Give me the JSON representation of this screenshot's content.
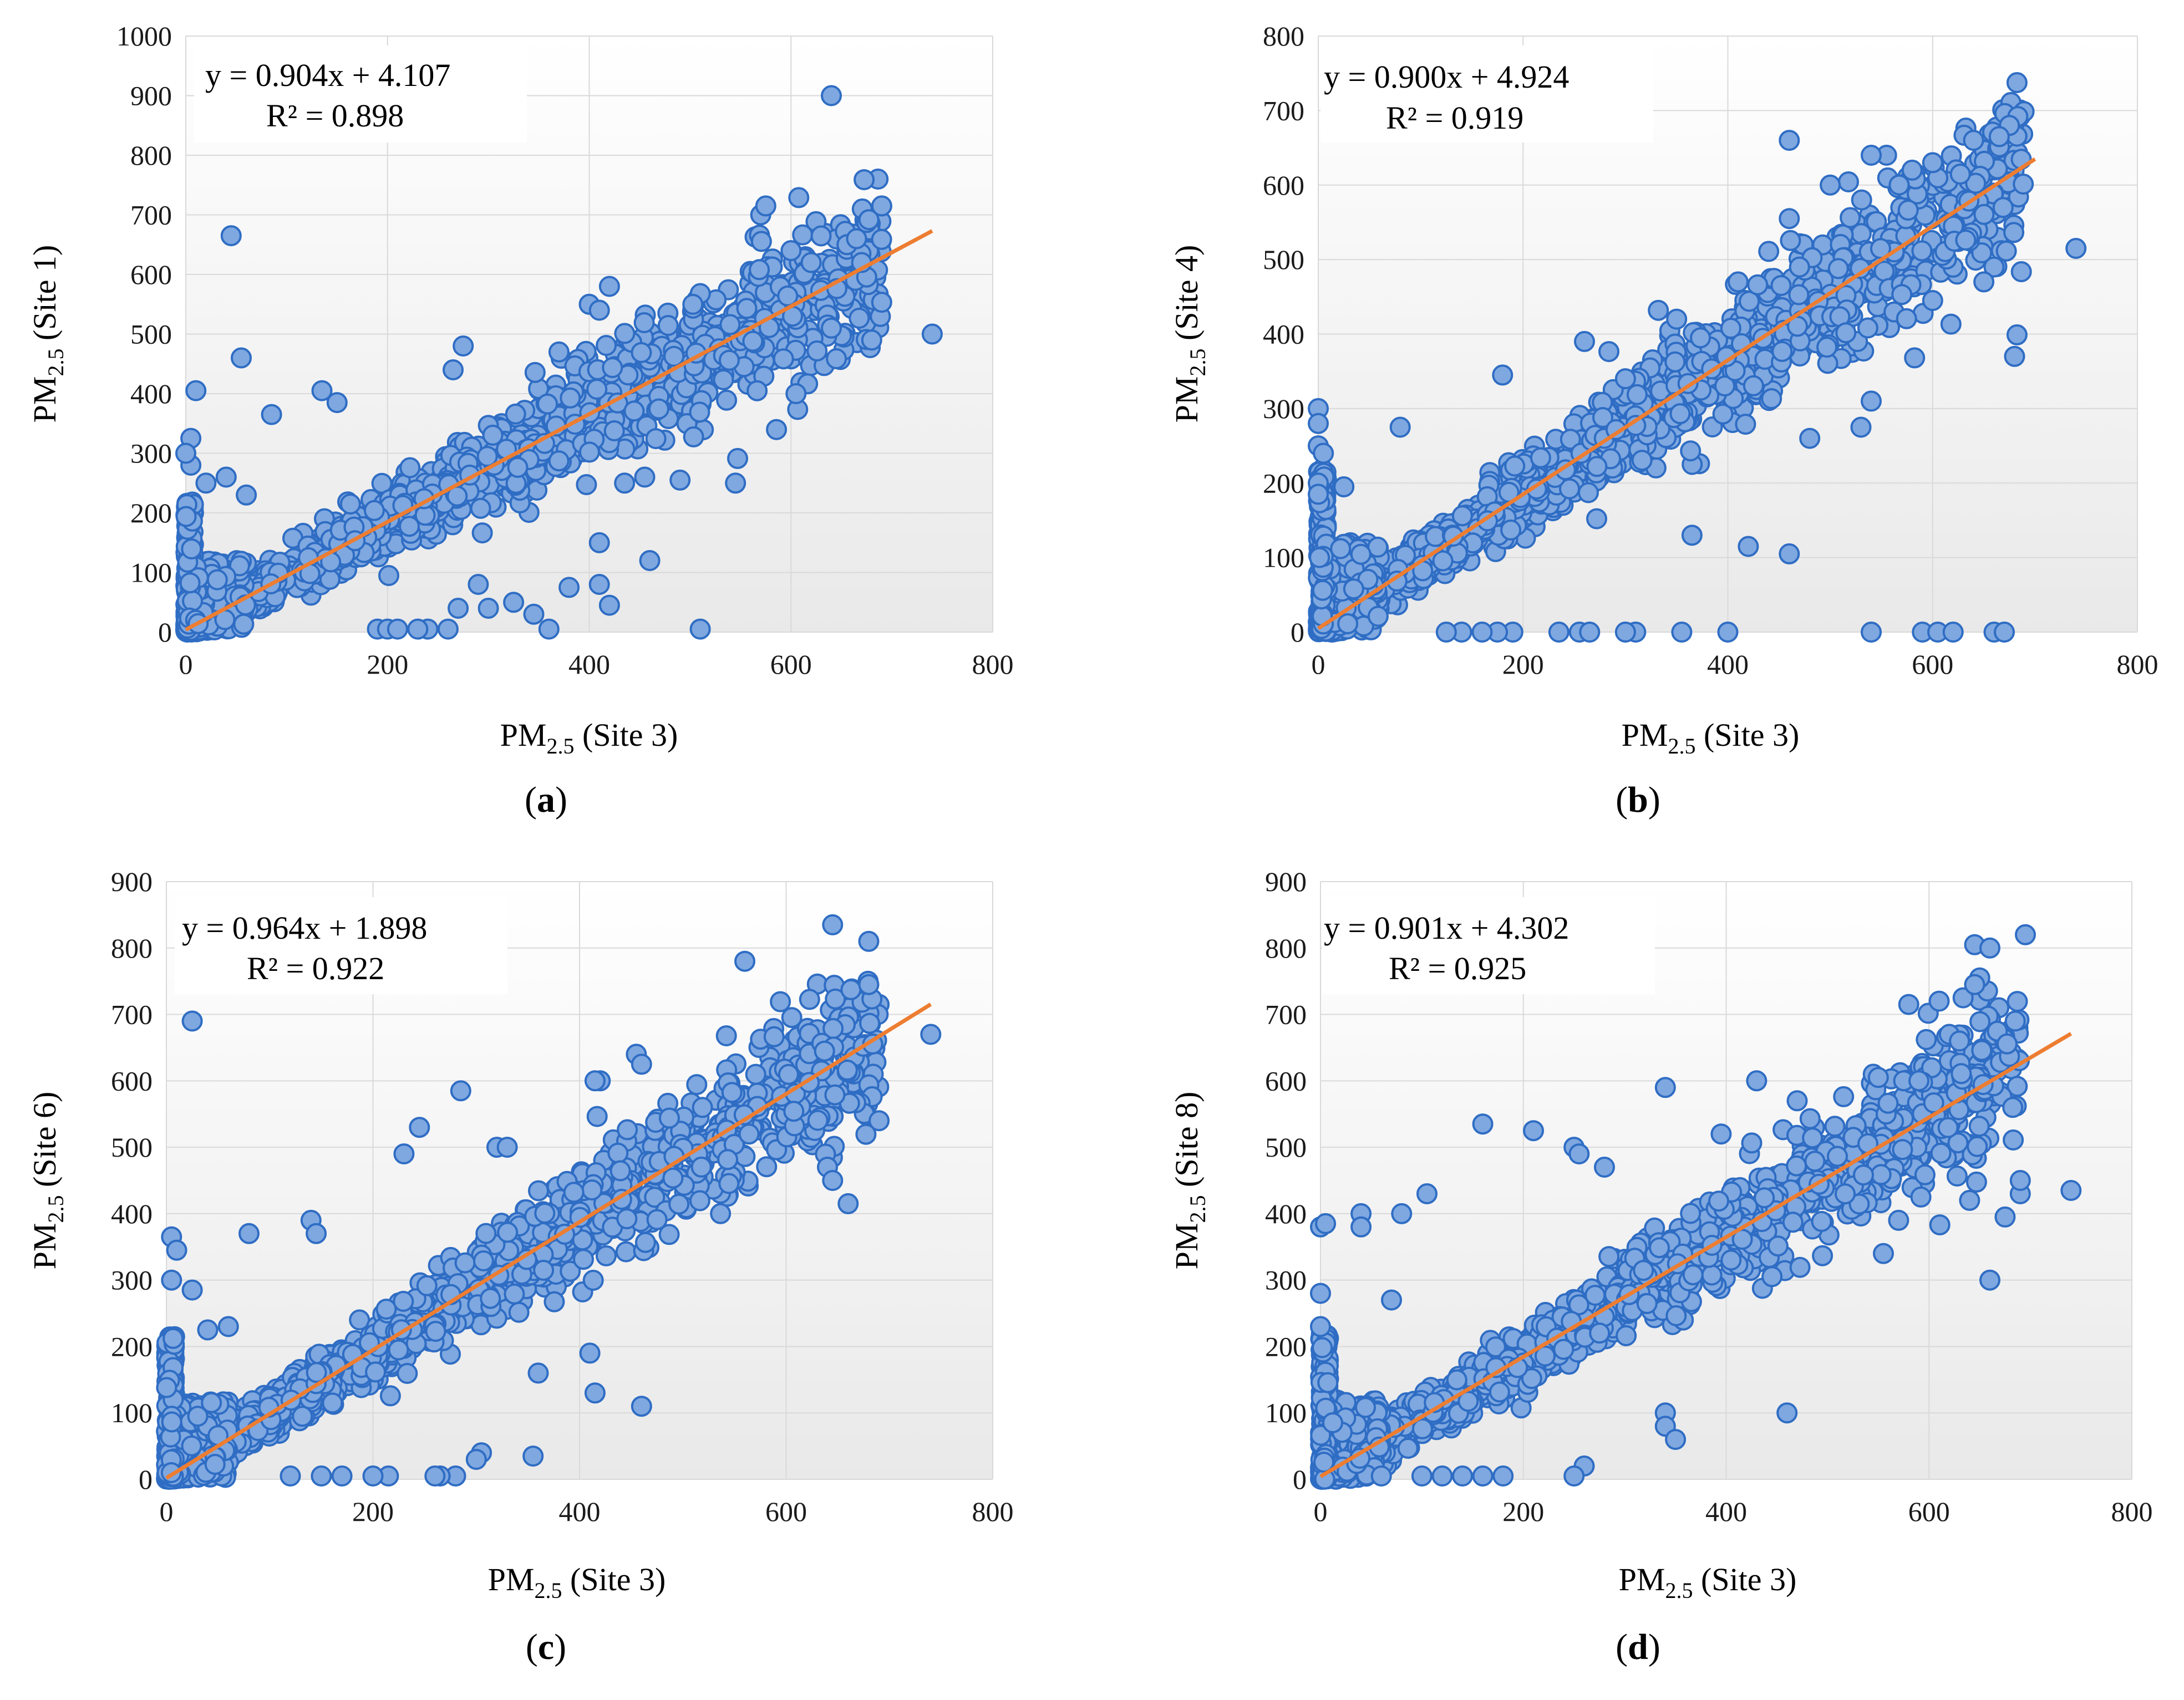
{
  "colors": {
    "marker_fill": "#7FA8E0",
    "marker_edge": "#2F6DC4",
    "trend": "#ED7D31",
    "grid": "#d9d9d9",
    "plot_bg_top": "#ffffff",
    "plot_bg_bottom": "#ebebeb"
  },
  "chart_data": [
    {
      "panel": "a",
      "type": "scatter",
      "xlabel_main": "PM",
      "xlabel_sub": "2.5",
      "xlabel_rest": " (Site 3)",
      "ylabel_main": "PM",
      "ylabel_sub": "2.5",
      "ylabel_rest": " (Site 1)",
      "xlim": [
        0,
        800
      ],
      "ylim": [
        0,
        1000
      ],
      "xticks": [
        0,
        200,
        400,
        600,
        800
      ],
      "yticks": [
        0,
        100,
        200,
        300,
        400,
        500,
        600,
        700,
        800,
        900,
        1000
      ],
      "equation": "y = 0.904x + 4.107",
      "r2": "R² = 0.898",
      "trend": {
        "slope": 0.904,
        "intercept": 4.107,
        "x_range": [
          0,
          740
        ]
      },
      "outliers": [
        [
          640,
          900
        ],
        [
          45,
          665
        ],
        [
          55,
          460
        ],
        [
          10,
          405
        ],
        [
          85,
          365
        ],
        [
          5,
          325
        ],
        [
          135,
          405
        ],
        [
          150,
          385
        ],
        [
          265,
          440
        ],
        [
          275,
          480
        ],
        [
          370,
          470
        ],
        [
          400,
          550
        ],
        [
          410,
          540
        ],
        [
          420,
          580
        ],
        [
          435,
          250
        ],
        [
          455,
          260
        ],
        [
          460,
          120
        ],
        [
          490,
          255
        ],
        [
          510,
          5
        ],
        [
          545,
          250
        ],
        [
          570,
          700
        ],
        [
          575,
          715
        ],
        [
          600,
          640
        ],
        [
          620,
          620
        ],
        [
          605,
          400
        ],
        [
          640,
          510
        ],
        [
          665,
          660
        ],
        [
          670,
          620
        ],
        [
          690,
          715
        ],
        [
          680,
          490
        ],
        [
          740,
          500
        ],
        [
          380,
          75
        ],
        [
          345,
          30
        ],
        [
          410,
          80
        ],
        [
          420,
          45
        ],
        [
          410,
          150
        ],
        [
          360,
          5
        ],
        [
          300,
          40
        ],
        [
          325,
          50
        ],
        [
          270,
          40
        ],
        [
          240,
          5
        ],
        [
          290,
          80
        ],
        [
          190,
          5
        ],
        [
          200,
          5
        ],
        [
          210,
          5
        ],
        [
          230,
          5
        ],
        [
          260,
          5
        ],
        [
          40,
          260
        ],
        [
          60,
          230
        ],
        [
          20,
          250
        ],
        [
          5,
          280
        ],
        [
          0,
          300
        ]
      ],
      "band": {
        "x_max": 690,
        "width": 130
      }
    },
    {
      "panel": "b",
      "type": "scatter",
      "xlabel_main": "PM",
      "xlabel_sub": "2.5",
      "xlabel_rest": " (Site 3)",
      "ylabel_main": "PM",
      "ylabel_sub": "2.5",
      "ylabel_rest": " (Site 4)",
      "xlim": [
        0,
        800
      ],
      "ylim": [
        0,
        800
      ],
      "xticks": [
        0,
        200,
        400,
        600,
        800
      ],
      "yticks": [
        0,
        100,
        200,
        300,
        400,
        500,
        600,
        700,
        800
      ],
      "equation": "y = 0.900x + 4.924",
      "r2": "R² = 0.919",
      "trend": {
        "slope": 0.9,
        "intercept": 4.924,
        "x_range": [
          0,
          700
        ]
      },
      "outliers": [
        [
          460,
          660
        ],
        [
          500,
          600
        ],
        [
          460,
          555
        ],
        [
          675,
          680
        ],
        [
          665,
          665
        ],
        [
          640,
          660
        ],
        [
          555,
          640
        ],
        [
          540,
          640
        ],
        [
          600,
          630
        ],
        [
          580,
          620
        ],
        [
          740,
          515
        ],
        [
          680,
          370
        ],
        [
          600,
          445
        ],
        [
          660,
          490
        ],
        [
          650,
          470
        ],
        [
          530,
          275
        ],
        [
          540,
          310
        ],
        [
          480,
          260
        ],
        [
          420,
          115
        ],
        [
          460,
          105
        ],
        [
          365,
          130
        ],
        [
          540,
          0
        ],
        [
          590,
          0
        ],
        [
          605,
          0
        ],
        [
          620,
          0
        ],
        [
          660,
          0
        ],
        [
          670,
          0
        ],
        [
          400,
          0
        ],
        [
          355,
          0
        ],
        [
          310,
          0
        ],
        [
          300,
          0
        ],
        [
          255,
          0
        ],
        [
          235,
          0
        ],
        [
          265,
          0
        ],
        [
          190,
          0
        ],
        [
          175,
          0
        ],
        [
          160,
          0
        ],
        [
          140,
          0
        ],
        [
          125,
          0
        ],
        [
          0,
          300
        ],
        [
          0,
          280
        ],
        [
          0,
          250
        ],
        [
          5,
          240
        ],
        [
          0,
          200
        ],
        [
          0,
          185
        ],
        [
          25,
          195
        ],
        [
          80,
          275
        ],
        [
          180,
          345
        ],
        [
          260,
          390
        ],
        [
          300,
          340
        ],
        [
          350,
          420
        ],
        [
          410,
          470
        ],
        [
          470,
          490
        ]
      ],
      "band": {
        "x_max": 690,
        "width": 110
      }
    },
    {
      "panel": "c",
      "type": "scatter",
      "xlabel_main": "PM",
      "xlabel_sub": "2.5",
      "xlabel_rest": " (Site 3)",
      "ylabel_main": "PM",
      "ylabel_sub": "2.5",
      "ylabel_rest": "  (Site 6)",
      "xlim": [
        0,
        800
      ],
      "ylim": [
        0,
        900
      ],
      "xticks": [
        0,
        200,
        400,
        600,
        800
      ],
      "yticks": [
        0,
        100,
        200,
        300,
        400,
        500,
        600,
        700,
        800,
        900
      ],
      "equation": "y = 0.964x + 1.898",
      "r2": "R² = 0.922",
      "trend": {
        "slope": 0.964,
        "intercept": 1.898,
        "x_range": [
          0,
          740
        ]
      },
      "outliers": [
        [
          645,
          835
        ],
        [
          680,
          810
        ],
        [
          680,
          745
        ],
        [
          560,
          780
        ],
        [
          25,
          690
        ],
        [
          740,
          670
        ],
        [
          690,
          540
        ],
        [
          640,
          470
        ],
        [
          645,
          450
        ],
        [
          660,
          415
        ],
        [
          455,
          640
        ],
        [
          460,
          625
        ],
        [
          420,
          600
        ],
        [
          415,
          600
        ],
        [
          320,
          500
        ],
        [
          330,
          500
        ],
        [
          285,
          585
        ],
        [
          245,
          530
        ],
        [
          230,
          490
        ],
        [
          80,
          370
        ],
        [
          5,
          365
        ],
        [
          10,
          345
        ],
        [
          5,
          300
        ],
        [
          25,
          285
        ],
        [
          140,
          390
        ],
        [
          145,
          370
        ],
        [
          360,
          160
        ],
        [
          410,
          190
        ],
        [
          415,
          130
        ],
        [
          460,
          110
        ],
        [
          355,
          35
        ],
        [
          305,
          40
        ],
        [
          300,
          30
        ],
        [
          280,
          5
        ],
        [
          265,
          5
        ],
        [
          260,
          5
        ],
        [
          215,
          5
        ],
        [
          200,
          5
        ],
        [
          170,
          5
        ],
        [
          150,
          5
        ],
        [
          120,
          5
        ],
        [
          40,
          225
        ],
        [
          60,
          230
        ]
      ],
      "band": {
        "x_max": 690,
        "width": 110
      }
    },
    {
      "panel": "d",
      "type": "scatter",
      "xlabel_main": "PM",
      "xlabel_sub": "2.5",
      "xlabel_rest": " (Site 3)",
      "ylabel_main": "PM",
      "ylabel_sub": "2.5",
      "ylabel_rest": " (Site 8)",
      "xlim": [
        0,
        800
      ],
      "ylim": [
        0,
        900
      ],
      "xticks": [
        0,
        200,
        400,
        600,
        800
      ],
      "yticks": [
        0,
        100,
        200,
        300,
        400,
        500,
        600,
        700,
        800,
        900
      ],
      "equation": "y = 0.901x + 4.302",
      "r2": "R² = 0.925",
      "trend": {
        "slope": 0.901,
        "intercept": 4.302,
        "x_range": [
          0,
          740
        ]
      },
      "outliers": [
        [
          695,
          820
        ],
        [
          645,
          805
        ],
        [
          660,
          800
        ],
        [
          650,
          755
        ],
        [
          645,
          745
        ],
        [
          580,
          715
        ],
        [
          610,
          720
        ],
        [
          545,
          610
        ],
        [
          550,
          605
        ],
        [
          575,
          600
        ],
        [
          590,
          600
        ],
        [
          620,
          670
        ],
        [
          630,
          660
        ],
        [
          685,
          690
        ],
        [
          740,
          435
        ],
        [
          690,
          430
        ],
        [
          690,
          450
        ],
        [
          675,
          395
        ],
        [
          660,
          300
        ],
        [
          640,
          420
        ],
        [
          555,
          340
        ],
        [
          570,
          390
        ],
        [
          430,
          600
        ],
        [
          340,
          590
        ],
        [
          160,
          535
        ],
        [
          210,
          525
        ],
        [
          250,
          500
        ],
        [
          255,
          490
        ],
        [
          280,
          470
        ],
        [
          395,
          520
        ],
        [
          470,
          570
        ],
        [
          460,
          100
        ],
        [
          340,
          100
        ],
        [
          340,
          80
        ],
        [
          350,
          60
        ],
        [
          260,
          20
        ],
        [
          250,
          5
        ],
        [
          180,
          5
        ],
        [
          140,
          5
        ],
        [
          160,
          5
        ],
        [
          120,
          5
        ],
        [
          100,
          5
        ],
        [
          60,
          5
        ],
        [
          0,
          380
        ],
        [
          5,
          385
        ],
        [
          0,
          280
        ],
        [
          0,
          230
        ],
        [
          40,
          400
        ],
        [
          40,
          380
        ],
        [
          80,
          400
        ],
        [
          105,
          430
        ],
        [
          70,
          270
        ]
      ],
      "band": {
        "x_max": 690,
        "width": 110
      }
    }
  ],
  "panels": {
    "a": {
      "open": "(",
      "letter": "a",
      "close": ")"
    },
    "b": {
      "open": "(",
      "letter": "b",
      "close": ")"
    },
    "c": {
      "open": "(",
      "letter": "c",
      "close": ")"
    },
    "d": {
      "open": "(",
      "letter": "d",
      "close": ")"
    }
  }
}
